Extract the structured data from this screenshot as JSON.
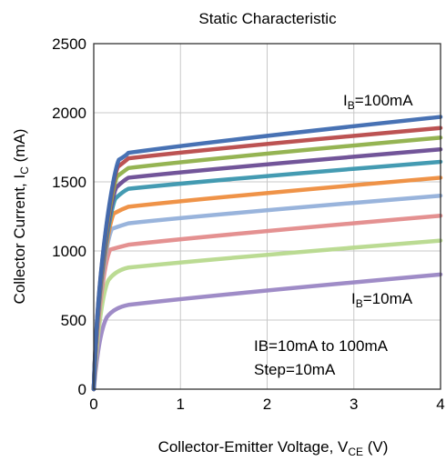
{
  "chart_data": {
    "type": "line",
    "title": "Static Characteristic",
    "xlabel": {
      "main": "Collector-Emitter Voltage, V",
      "sub": "CE",
      "unit": " (V)"
    },
    "ylabel": {
      "main": "Collector Current, I",
      "sub": "C",
      "unit": " (mA)"
    },
    "xlim": [
      0,
      4
    ],
    "ylim": [
      0,
      2500
    ],
    "xticks": [
      "0",
      "1",
      "2",
      "3",
      "4"
    ],
    "yticks": [
      "0",
      "500",
      "1000",
      "1500",
      "2000",
      "2500"
    ],
    "grid": true,
    "annotations": {
      "top": {
        "main": "I",
        "sub": "B",
        "rest": "=100mA"
      },
      "bottom": {
        "main": "I",
        "sub": "B",
        "rest": "=10mA"
      },
      "note_line1": "IB=10mA to 100mA",
      "note_line2": "Step=10mA"
    },
    "series": [
      {
        "color": "#9a86c4",
        "knee_x": 0.15,
        "knee_y": 520,
        "curve_x": 0.4,
        "curve_y": 610,
        "end_y": 830
      },
      {
        "color": "#b7d98d",
        "knee_x": 0.17,
        "knee_y": 790,
        "curve_x": 0.4,
        "curve_y": 880,
        "end_y": 1075
      },
      {
        "color": "#e38b8b",
        "knee_x": 0.19,
        "knee_y": 1010,
        "curve_x": 0.4,
        "curve_y": 1045,
        "end_y": 1255
      },
      {
        "color": "#93b0da",
        "knee_x": 0.21,
        "knee_y": 1160,
        "curve_x": 0.4,
        "curve_y": 1200,
        "end_y": 1400
      },
      {
        "color": "#ee8d3e",
        "knee_x": 0.23,
        "knee_y": 1270,
        "curve_x": 0.4,
        "curve_y": 1320,
        "end_y": 1530
      },
      {
        "color": "#3a96ae",
        "knee_x": 0.25,
        "knee_y": 1380,
        "curve_x": 0.4,
        "curve_y": 1450,
        "end_y": 1645
      },
      {
        "color": "#6a4c94",
        "knee_x": 0.26,
        "knee_y": 1460,
        "curve_x": 0.4,
        "curve_y": 1530,
        "end_y": 1735
      },
      {
        "color": "#8fb04a",
        "knee_x": 0.27,
        "knee_y": 1540,
        "curve_x": 0.4,
        "curve_y": 1600,
        "end_y": 1820
      },
      {
        "color": "#b84a4a",
        "knee_x": 0.28,
        "knee_y": 1610,
        "curve_x": 0.4,
        "curve_y": 1670,
        "end_y": 1890
      },
      {
        "color": "#3e6ab0",
        "knee_x": 0.29,
        "knee_y": 1660,
        "curve_x": 0.4,
        "curve_y": 1710,
        "end_y": 1970
      }
    ]
  }
}
